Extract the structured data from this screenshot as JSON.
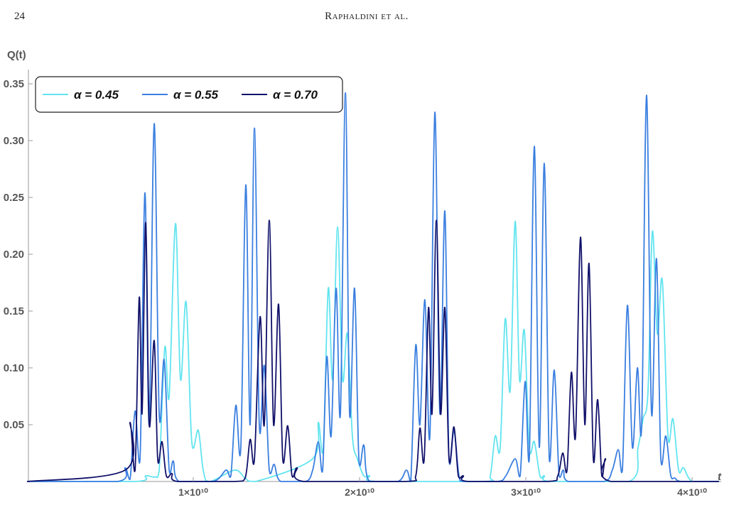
{
  "header": {
    "page_number": "24",
    "running_title": "Raphaldini et al."
  },
  "chart_data": {
    "type": "line",
    "y_label": "Q(t)",
    "x_label": "t",
    "xlim": [
      0,
      41700000000.0
    ],
    "ylim": [
      0,
      0.36
    ],
    "xticks": [
      {
        "value": 10000000000.0,
        "label": "1×10¹⁰"
      },
      {
        "value": 20000000000.0,
        "label": "2×10¹⁰"
      },
      {
        "value": 30000000000.0,
        "label": "3×10¹⁰"
      },
      {
        "value": 40000000000.0,
        "label": "4×10¹⁰"
      }
    ],
    "yticks": [
      0.05,
      {
        "value": 0.1,
        "label": "0.10"
      },
      0.15,
      {
        "value": 0.2,
        "label": "0.20"
      },
      0.25,
      {
        "value": 0.3,
        "label": "0.30"
      },
      0.35
    ],
    "legend": "top-left",
    "series": [
      {
        "name": "α = 0.45",
        "color": "#62e4ef",
        "x": [
          0,
          6500000000.0,
          7140000000.0,
          7690000000.0,
          7950000000.0,
          8290000000.0,
          8550000000.0,
          8930000000.0,
          9230000000.0,
          9570000000.0,
          9910000000.0,
          10300000000.0,
          10600000000.0,
          10980000000.0,
          12480000000.0,
          13120000000.0,
          13760000000.0,
          17180000000.0,
          17520000000.0,
          17820000000.0,
          18120000000.0,
          18380000000.0,
          18680000000.0,
          18970000000.0,
          19270000000.0,
          19570000000.0,
          19870000000.0,
          20260000000.0,
          20600000000.0,
          21030000000.0,
          27440000000.0,
          27860000000.0,
          28160000000.0,
          28460000000.0,
          28760000000.0,
          29060000000.0,
          29360000000.0,
          29620000000.0,
          29910000000.0,
          30210000000.0,
          30510000000.0,
          30850000000.0,
          31110000000.0,
          31500000000.0,
          36200000000.0,
          36750000000.0,
          37050000000.0,
          37350000000.0,
          37610000000.0,
          37910000000.0,
          38210000000.0,
          38550000000.0,
          38850000000.0,
          39190000000.0,
          39490000000.0,
          40040000000.0,
          41620000000.0
        ],
        "values": [
          0,
          0,
          0.005,
          0.004,
          0.01,
          0.118,
          0.075,
          0.227,
          0.09,
          0.158,
          0.035,
          0.045,
          0.01,
          0,
          0.01,
          0.003,
          0,
          0.02,
          0.052,
          0.03,
          0.17,
          0.09,
          0.224,
          0.09,
          0.13,
          0.04,
          0.02,
          0.005,
          0.005,
          0,
          0,
          0.005,
          0.04,
          0.03,
          0.143,
          0.08,
          0.229,
          0.09,
          0.133,
          0.03,
          0.035,
          0.005,
          0.005,
          0,
          0,
          0.03,
          0.055,
          0.08,
          0.22,
          0.13,
          0.177,
          0.04,
          0.055,
          0.01,
          0.012,
          0,
          0
        ]
      },
      {
        "name": "α = 0.55",
        "color": "#3a7fe0",
        "x": [
          0,
          5430000000.0,
          5900000000.0,
          6200000000.0,
          6500000000.0,
          6800000000.0,
          7090000000.0,
          7350000000.0,
          7650000000.0,
          7950000000.0,
          8250000000.0,
          8550000000.0,
          8800000000.0,
          9150000000.0,
          11200000000.0,
          11970000000.0,
          12260000000.0,
          12560000000.0,
          12860000000.0,
          13160000000.0,
          13420000000.0,
          13680000000.0,
          13970000000.0,
          14270000000.0,
          14570000000.0,
          14870000000.0,
          15260000000.0,
          16750000000.0,
          17180000000.0,
          17520000000.0,
          17780000000.0,
          18030000000.0,
          18290000000.0,
          18590000000.0,
          18850000000.0,
          19150000000.0,
          19400000000.0,
          19700000000.0,
          19960000000.0,
          20260000000.0,
          20600000000.0,
          22300000000.0,
          22820000000.0,
          23080000000.0,
          23380000000.0,
          23630000000.0,
          23930000000.0,
          24230000000.0,
          24530000000.0,
          24830000000.0,
          25130000000.0,
          25380000000.0,
          25680000000.0,
          25980000000.0,
          26300000000.0,
          28300000000.0,
          28800000000.0,
          29360000000.0,
          29660000000.0,
          29960000000.0,
          30210000000.0,
          30510000000.0,
          30810000000.0,
          31110000000.0,
          31410000000.0,
          31710000000.0,
          32000000000.0,
          32260000000.0,
          32560000000.0,
          34700000000.0,
          35200000000.0,
          35560000000.0,
          35810000000.0,
          36110000000.0,
          36410000000.0,
          36710000000.0,
          36970000000.0,
          37260000000.0,
          37560000000.0,
          37860000000.0,
          38120000000.0,
          38420000000.0,
          38720000000.0,
          38970000000.0,
          39400000000.0,
          41600000000.0
        ],
        "values": [
          0,
          0,
          0.012,
          0.002,
          0.062,
          0.02,
          0.254,
          0.05,
          0.315,
          0.06,
          0.107,
          0.01,
          0.018,
          0,
          0,
          0.01,
          0.005,
          0.067,
          0.03,
          0.261,
          0.05,
          0.311,
          0.05,
          0.102,
          0.01,
          0.015,
          0,
          0,
          0.01,
          0.035,
          0.01,
          0.11,
          0.04,
          0.17,
          0.06,
          0.342,
          0.06,
          0.17,
          0.02,
          0.032,
          0,
          0,
          0.01,
          0,
          0.12,
          0.05,
          0.16,
          0.04,
          0.325,
          0.06,
          0.238,
          0.02,
          0.045,
          0.005,
          0,
          0,
          0.005,
          0.02,
          0.005,
          0.088,
          0.02,
          0.295,
          0.03,
          0.28,
          0.02,
          0.098,
          0.005,
          0.01,
          0,
          0,
          0.01,
          0.028,
          0.01,
          0.155,
          0.03,
          0.1,
          0.05,
          0.34,
          0.06,
          0.196,
          0.02,
          0.04,
          0.005,
          0.003,
          0,
          0
        ]
      },
      {
        "name": "α = 0.70",
        "color": "#10106a",
        "x": [
          0,
          5900000000.0,
          6200000000.0,
          6500000000.0,
          6750000000.0,
          6920000000.0,
          7140000000.0,
          7350000000.0,
          7650000000.0,
          7860000000.0,
          8120000000.0,
          8380000000.0,
          8720000000.0,
          9060000000.0,
          12480000000.0,
          13120000000.0,
          13420000000.0,
          13680000000.0,
          14020000000.0,
          14270000000.0,
          14570000000.0,
          14830000000.0,
          15130000000.0,
          15380000000.0,
          15680000000.0,
          15940000000.0,
          16240000000.0,
          16670000000.0,
          22740000000.0,
          23380000000.0,
          23630000000.0,
          23890000000.0,
          24150000000.0,
          24360000000.0,
          24620000000.0,
          24870000000.0,
          25130000000.0,
          25380000000.0,
          25680000000.0,
          25940000000.0,
          26240000000.0,
          26580000000.0,
          31280000000.0,
          31920000000.0,
          32220000000.0,
          32480000000.0,
          32740000000.0,
          32990000000.0,
          33290000000.0,
          33550000000.0,
          33800000000.0,
          34060000000.0,
          34320000000.0,
          34570000000.0,
          34790000000.0,
          35130000000.0,
          41620000000.0
        ],
        "values": [
          0,
          0.01,
          0.052,
          0.01,
          0.162,
          0.06,
          0.228,
          0.05,
          0.124,
          0.02,
          0.035,
          0.005,
          0.007,
          0,
          0,
          0.003,
          0.037,
          0.02,
          0.145,
          0.05,
          0.23,
          0.05,
          0.156,
          0.02,
          0.049,
          0.005,
          0.012,
          0,
          0,
          0.005,
          0.047,
          0.02,
          0.153,
          0.06,
          0.23,
          0.06,
          0.153,
          0.02,
          0.048,
          0.005,
          0.005,
          0,
          0,
          0.005,
          0.025,
          0.01,
          0.096,
          0.04,
          0.215,
          0.05,
          0.192,
          0.02,
          0.072,
          0.005,
          0.02,
          0,
          0
        ]
      }
    ]
  }
}
